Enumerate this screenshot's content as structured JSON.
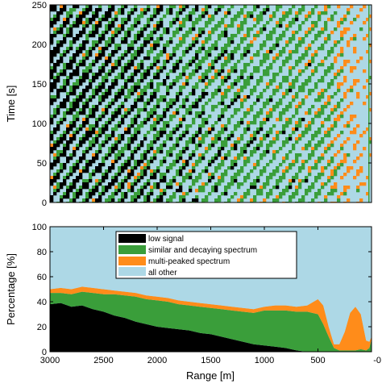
{
  "chart_data": [
    {
      "type": "heatmap",
      "title": "",
      "xlabel": "",
      "ylabel": "Time [s]",
      "xlim": [
        3000,
        0
      ],
      "ylim": [
        0,
        250
      ],
      "yticks": [
        "0",
        "50",
        "100",
        "150",
        "200",
        "250"
      ],
      "categories": [
        {
          "name": "low signal",
          "color": "#000000"
        },
        {
          "name": "similar and decaying spectrum",
          "color": "#3a9e3a"
        },
        {
          "name": "multi-peaked spectrum",
          "color": "#ff8c1a"
        },
        {
          "name": "all other",
          "color": "#add8e6"
        }
      ],
      "stripe_period_s": 20,
      "stripe_slope_s_per_m": 0.18,
      "band_fractions": [
        {
          "range": 3000,
          "low": 0.45,
          "similar": 0.15,
          "multi": 0.02
        },
        {
          "range": 2500,
          "low": 0.33,
          "similar": 0.22,
          "multi": 0.03
        },
        {
          "range": 2000,
          "low": 0.2,
          "similar": 0.28,
          "multi": 0.03
        },
        {
          "range": 1500,
          "low": 0.1,
          "similar": 0.33,
          "multi": 0.03
        },
        {
          "range": 1000,
          "low": 0.05,
          "similar": 0.34,
          "multi": 0.04
        },
        {
          "range": 500,
          "low": 0.0,
          "similar": 0.35,
          "multi": 0.08
        },
        {
          "range": 200,
          "low": 0.0,
          "similar": 0.02,
          "multi": 0.25
        },
        {
          "range": 0,
          "low": 0.0,
          "similar": 0.01,
          "multi": 0.1
        }
      ]
    },
    {
      "type": "area",
      "title": "",
      "xlabel": "Range [m]",
      "ylabel": "Percentage [%]",
      "xlim": [
        3000,
        0
      ],
      "ylim": [
        0,
        100
      ],
      "xticks": [
        "3000",
        "2500",
        "2000",
        "1500",
        "1000",
        "500",
        "-0"
      ],
      "yticks": [
        "0",
        "20",
        "40",
        "60",
        "80",
        "100"
      ],
      "legend_position": "top-center",
      "x": [
        3000,
        2900,
        2800,
        2700,
        2600,
        2500,
        2400,
        2300,
        2200,
        2100,
        2000,
        1900,
        1800,
        1700,
        1600,
        1500,
        1400,
        1300,
        1200,
        1100,
        1000,
        900,
        800,
        700,
        600,
        500,
        450,
        400,
        350,
        300,
        250,
        200,
        150,
        100,
        50,
        20,
        0
      ],
      "series": [
        {
          "name": "low signal",
          "color": "#000000",
          "values": [
            38,
            39,
            36,
            37,
            34,
            32,
            29,
            27,
            24,
            22,
            20,
            19,
            18,
            17,
            15,
            14,
            12,
            10,
            8,
            6,
            5,
            4,
            3,
            1,
            0,
            0,
            0,
            0,
            0,
            0,
            0,
            0,
            0,
            0,
            0,
            0,
            0
          ]
        },
        {
          "name": "similar and decaying spectrum",
          "color": "#3a9e3a",
          "values": [
            9,
            8,
            10,
            11,
            13,
            14,
            17,
            18,
            20,
            20,
            21,
            21,
            20,
            20,
            21,
            21,
            22,
            23,
            24,
            25,
            28,
            29,
            30,
            31,
            32,
            30,
            22,
            12,
            3,
            1,
            1,
            1,
            1,
            2,
            1,
            3,
            10
          ]
        },
        {
          "name": "multi-peaked spectrum",
          "color": "#ff8c1a",
          "values": [
            3,
            4,
            4,
            4,
            4,
            4,
            3,
            3,
            3,
            3,
            3,
            3,
            3,
            3,
            3,
            3,
            3,
            3,
            3,
            3,
            3,
            4,
            4,
            4,
            5,
            12,
            15,
            8,
            3,
            5,
            15,
            30,
            35,
            28,
            8,
            5,
            2
          ]
        },
        {
          "name": "all other",
          "color": "#add8e6",
          "values": [
            50,
            49,
            50,
            48,
            49,
            50,
            51,
            52,
            53,
            55,
            56,
            57,
            59,
            60,
            61,
            62,
            63,
            64,
            65,
            66,
            64,
            63,
            63,
            64,
            63,
            58,
            63,
            80,
            94,
            94,
            84,
            69,
            64,
            70,
            91,
            92,
            88
          ]
        }
      ]
    }
  ]
}
